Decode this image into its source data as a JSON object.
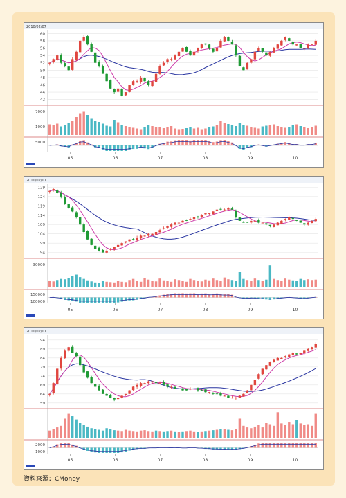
{
  "source_note": "資料來源：CMoney",
  "colors": {
    "up": "#e0463f",
    "down": "#1f9a35",
    "ma_short": "#cc3aa8",
    "ma_long": "#2834a0",
    "vol_up": "#f08a86",
    "vol_down": "#4ab8c4",
    "grid": "#e4e4e4",
    "divider": "#d26060"
  },
  "chart_data": [
    {
      "type": "candlestick",
      "header": "2010/02/07",
      "x_labels": [
        "05",
        "06",
        "07",
        "08",
        "09",
        "10"
      ],
      "y_ticks": [
        42,
        44,
        46,
        48,
        50,
        52,
        54,
        56,
        58,
        60
      ],
      "ylim": [
        41,
        61
      ],
      "series_price": [
        52,
        53,
        54,
        52,
        51,
        50,
        53,
        55,
        58,
        59,
        57,
        55,
        52,
        51,
        49,
        47,
        45,
        44,
        45,
        43,
        44,
        46,
        47,
        47,
        48,
        47,
        46,
        47,
        49,
        51,
        52,
        53,
        53,
        54,
        55,
        56,
        55,
        54,
        55,
        56,
        57,
        57,
        56,
        55,
        56,
        58,
        59,
        58,
        57,
        54,
        51,
        50,
        52,
        53,
        55,
        56,
        55,
        54,
        55,
        56,
        57,
        58,
        59,
        58,
        57,
        57,
        56,
        56,
        57,
        57,
        58
      ],
      "vol_labels": [
        "7000",
        "1000"
      ],
      "osc_labels": [
        "5000"
      ],
      "vol_ylim": [
        0,
        8000
      ],
      "volume": [
        3100,
        2800,
        3300,
        2500,
        2900,
        3400,
        4200,
        5200,
        6300,
        6900,
        5800,
        4700,
        4100,
        3800,
        3300,
        2700,
        2500,
        4400,
        3700,
        3000,
        2600,
        2300,
        2100,
        1900,
        1700,
        2200,
        2800,
        2600,
        2400,
        2200,
        2000,
        2300,
        2600,
        1900,
        1700,
        1800,
        2000,
        2200,
        1900,
        2100,
        1700,
        1900,
        2400,
        2500,
        2800,
        4200,
        3500,
        3200,
        2900,
        2600,
        3400,
        3000,
        2700,
        2400,
        2100,
        1900,
        2500,
        2700,
        2900,
        3100,
        2600,
        2300,
        2100,
        2400,
        2800,
        3100,
        2600,
        2200,
        2000,
        2400,
        2700
      ]
    },
    {
      "type": "candlestick",
      "header": "2010/02/07",
      "x_labels": [
        "05",
        "06",
        "07",
        "08",
        "09",
        "10"
      ],
      "y_ticks": [
        94,
        99,
        104,
        109,
        114,
        119,
        124,
        129
      ],
      "ylim": [
        92,
        131
      ],
      "series_price": [
        127,
        128,
        126,
        124,
        120,
        118,
        116,
        113,
        109,
        105,
        101,
        98,
        96,
        95,
        94,
        95,
        96,
        97,
        98,
        99,
        100,
        101,
        101,
        102,
        103,
        103,
        104,
        104,
        105,
        106,
        107,
        108,
        109,
        110,
        110,
        111,
        111,
        112,
        113,
        113,
        114,
        115,
        115,
        116,
        117,
        117,
        117,
        118,
        117,
        113,
        111,
        110,
        110,
        111,
        111,
        110,
        110,
        109,
        108,
        109,
        110,
        111,
        112,
        113,
        112,
        111,
        110,
        109,
        110,
        111,
        112
      ],
      "vol_labels": [
        "30000"
      ],
      "osc_labels": [
        "150000",
        "100000"
      ],
      "vol_ylim": [
        0,
        38000
      ],
      "volume": [
        9000,
        8500,
        10500,
        12000,
        11500,
        13000,
        16500,
        18000,
        14500,
        12000,
        10000,
        8500,
        7000,
        6500,
        9000,
        8000,
        7500,
        7000,
        9500,
        8000,
        7500,
        10500,
        12000,
        9500,
        8000,
        13000,
        11000,
        9000,
        8500,
        12500,
        10000,
        9500,
        8000,
        11500,
        10500,
        9000,
        8000,
        12000,
        10500,
        9500,
        8500,
        11000,
        10000,
        12500,
        10500,
        9000,
        14000,
        11500,
        10500,
        9500,
        22000,
        12000,
        10500,
        9000,
        12500,
        10500,
        9500,
        11000,
        31000,
        12000,
        10500,
        9500,
        12500,
        11000,
        10000,
        9500,
        12000,
        10500,
        11500,
        10500,
        11000
      ]
    },
    {
      "type": "candlestick",
      "header": "2010/02/07",
      "x_labels": [
        "05",
        "06",
        "07",
        "08",
        "09",
        "10"
      ],
      "y_ticks": [
        59,
        64,
        69,
        74,
        79,
        84,
        89,
        94
      ],
      "ylim": [
        57,
        97
      ],
      "series_price": [
        64,
        70,
        78,
        84,
        88,
        90,
        87,
        85,
        80,
        76,
        73,
        70,
        68,
        66,
        64,
        63,
        62,
        61,
        62,
        63,
        64,
        66,
        68,
        69,
        70,
        70,
        71,
        71,
        70,
        70,
        69,
        68,
        68,
        67,
        67,
        66,
        66,
        67,
        67,
        66,
        66,
        65,
        65,
        64,
        64,
        63,
        63,
        62,
        62,
        62,
        63,
        64,
        66,
        69,
        72,
        75,
        78,
        80,
        82,
        83,
        84,
        84,
        85,
        86,
        87,
        86,
        87,
        88,
        89,
        90,
        92
      ],
      "vol_labels": [],
      "osc_labels": [
        "2000",
        "1000"
      ],
      "vol_ylim": [
        0,
        3400
      ],
      "volume": [
        900,
        1100,
        1300,
        1500,
        2400,
        3000,
        2700,
        2300,
        1900,
        1600,
        1400,
        1200,
        1100,
        1000,
        900,
        1200,
        1100,
        950,
        900,
        850,
        1000,
        900,
        850,
        800,
        900,
        950,
        850,
        800,
        900,
        850,
        800,
        850,
        900,
        800,
        750,
        800,
        850,
        900,
        800,
        750,
        800,
        850,
        900,
        950,
        1000,
        1050,
        1100,
        1000,
        950,
        1100,
        2400,
        1500,
        1300,
        1200,
        1400,
        1600,
        1300,
        1900,
        1700,
        1500,
        3200,
        1800,
        1600,
        2000,
        1700,
        2200,
        1800,
        1600,
        1700,
        1500,
        3000
      ]
    }
  ]
}
